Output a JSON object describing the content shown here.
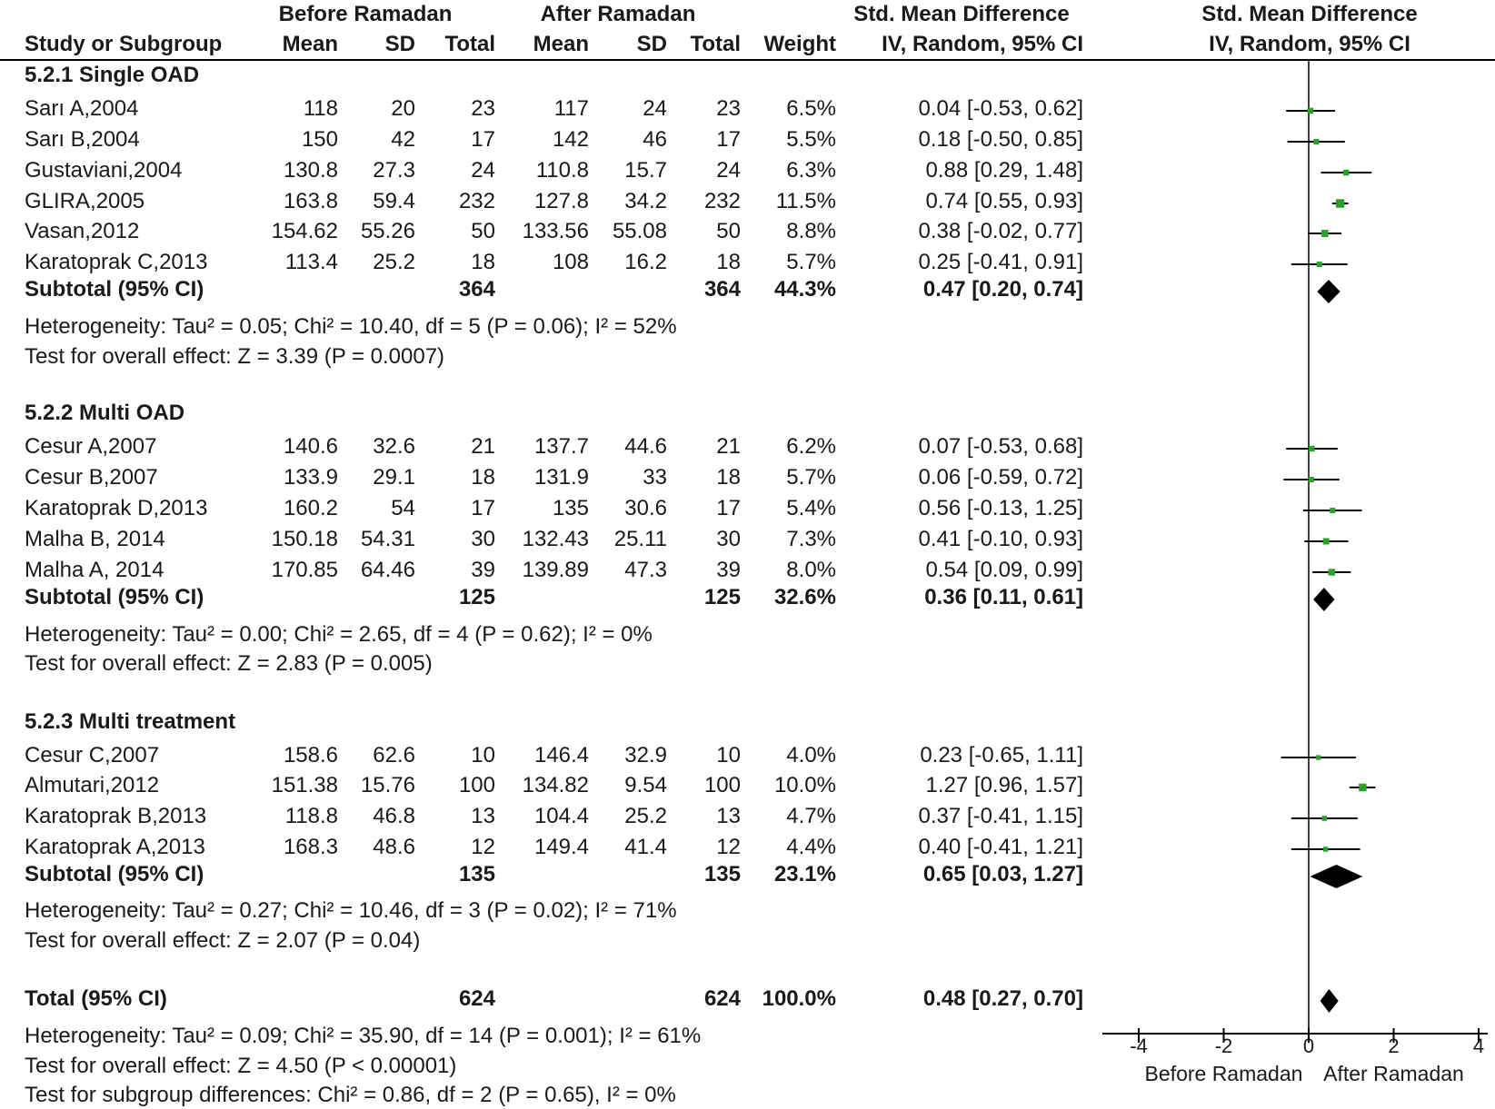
{
  "headers": {
    "group_before": "Before Ramadan",
    "group_after": "After Ramadan",
    "effect_col": "Std. Mean Difference",
    "study_col": "Study or Subgroup",
    "mean": "Mean",
    "sd": "SD",
    "total": "Total",
    "weight": "Weight",
    "method": "IV, Random, 95% CI",
    "plot_title": "Std. Mean Difference",
    "plot_method": "IV, Random, 95% CI"
  },
  "groups": [
    {
      "title": "5.2.1 Single OAD",
      "studies": [
        {
          "name": "Sarı A,2004",
          "m1": "118",
          "sd1": "20",
          "n1": "23",
          "m2": "117",
          "sd2": "24",
          "n2": "23",
          "weight": "6.5%",
          "ci": "0.04 [-0.53, 0.62]"
        },
        {
          "name": "Sarı B,2004",
          "m1": "150",
          "sd1": "42",
          "n1": "17",
          "m2": "142",
          "sd2": "46",
          "n2": "17",
          "weight": "5.5%",
          "ci": "0.18 [-0.50, 0.85]"
        },
        {
          "name": "Gustaviani,2004",
          "m1": "130.8",
          "sd1": "27.3",
          "n1": "24",
          "m2": "110.8",
          "sd2": "15.7",
          "n2": "24",
          "weight": "6.3%",
          "ci": "0.88 [0.29, 1.48]"
        },
        {
          "name": "GLIRA,2005",
          "m1": "163.8",
          "sd1": "59.4",
          "n1": "232",
          "m2": "127.8",
          "sd2": "34.2",
          "n2": "232",
          "weight": "11.5%",
          "ci": "0.74 [0.55, 0.93]"
        },
        {
          "name": "Vasan,2012",
          "m1": "154.62",
          "sd1": "55.26",
          "n1": "50",
          "m2": "133.56",
          "sd2": "55.08",
          "n2": "50",
          "weight": "8.8%",
          "ci": "0.38 [-0.02, 0.77]"
        },
        {
          "name": "Karatoprak C,2013",
          "m1": "113.4",
          "sd1": "25.2",
          "n1": "18",
          "m2": "108",
          "sd2": "16.2",
          "n2": "18",
          "weight": "5.7%",
          "ci": "0.25 [-0.41, 0.91]"
        }
      ],
      "subtotal": {
        "label": "Subtotal (95% CI)",
        "n1": "364",
        "n2": "364",
        "weight": "44.3%",
        "ci": "0.47 [0.20, 0.74]"
      },
      "heterogeneity": "Heterogeneity: Tau² = 0.05; Chi² = 10.40, df = 5 (P = 0.06); I² = 52%",
      "overall": "Test for overall effect: Z = 3.39 (P = 0.0007)"
    },
    {
      "title": "5.2.2 Multi OAD",
      "studies": [
        {
          "name": "Cesur A,2007",
          "m1": "140.6",
          "sd1": "32.6",
          "n1": "21",
          "m2": "137.7",
          "sd2": "44.6",
          "n2": "21",
          "weight": "6.2%",
          "ci": "0.07 [-0.53, 0.68]"
        },
        {
          "name": "Cesur B,2007",
          "m1": "133.9",
          "sd1": "29.1",
          "n1": "18",
          "m2": "131.9",
          "sd2": "33",
          "n2": "18",
          "weight": "5.7%",
          "ci": "0.06 [-0.59, 0.72]"
        },
        {
          "name": "Karatoprak D,2013",
          "m1": "160.2",
          "sd1": "54",
          "n1": "17",
          "m2": "135",
          "sd2": "30.6",
          "n2": "17",
          "weight": "5.4%",
          "ci": "0.56 [-0.13, 1.25]"
        },
        {
          "name": "Malha B, 2014",
          "m1": "150.18",
          "sd1": "54.31",
          "n1": "30",
          "m2": "132.43",
          "sd2": "25.11",
          "n2": "30",
          "weight": "7.3%",
          "ci": "0.41 [-0.10, 0.93]"
        },
        {
          "name": "Malha A, 2014",
          "m1": "170.85",
          "sd1": "64.46",
          "n1": "39",
          "m2": "139.89",
          "sd2": "47.3",
          "n2": "39",
          "weight": "8.0%",
          "ci": "0.54 [0.09, 0.99]"
        }
      ],
      "subtotal": {
        "label": "Subtotal (95% CI)",
        "n1": "125",
        "n2": "125",
        "weight": "32.6%",
        "ci": "0.36 [0.11, 0.61]"
      },
      "heterogeneity": "Heterogeneity: Tau² = 0.00; Chi² = 2.65, df = 4 (P = 0.62); I² = 0%",
      "overall": "Test for overall effect: Z = 2.83 (P = 0.005)"
    },
    {
      "title": "5.2.3 Multi treatment",
      "studies": [
        {
          "name": "Cesur C,2007",
          "m1": "158.6",
          "sd1": "62.6",
          "n1": "10",
          "m2": "146.4",
          "sd2": "32.9",
          "n2": "10",
          "weight": "4.0%",
          "ci": "0.23 [-0.65, 1.11]"
        },
        {
          "name": "Almutari,2012",
          "m1": "151.38",
          "sd1": "15.76",
          "n1": "100",
          "m2": "134.82",
          "sd2": "9.54",
          "n2": "100",
          "weight": "10.0%",
          "ci": "1.27 [0.96, 1.57]"
        },
        {
          "name": "Karatoprak B,2013",
          "m1": "118.8",
          "sd1": "46.8",
          "n1": "13",
          "m2": "104.4",
          "sd2": "25.2",
          "n2": "13",
          "weight": "4.7%",
          "ci": "0.37 [-0.41, 1.15]"
        },
        {
          "name": "Karatoprak A,2013",
          "m1": "168.3",
          "sd1": "48.6",
          "n1": "12",
          "m2": "149.4",
          "sd2": "41.4",
          "n2": "12",
          "weight": "4.4%",
          "ci": "0.40 [-0.41, 1.21]"
        }
      ],
      "subtotal": {
        "label": "Subtotal (95% CI)",
        "n1": "135",
        "n2": "135",
        "weight": "23.1%",
        "ci": "0.65 [0.03, 1.27]"
      },
      "heterogeneity": "Heterogeneity: Tau² = 0.27; Chi² = 10.46, df = 3 (P = 0.02); I² = 71%",
      "overall": "Test for overall effect: Z = 2.07 (P = 0.04)"
    }
  ],
  "total": {
    "label": "Total (95% CI)",
    "n1": "624",
    "n2": "624",
    "weight": "100.0%",
    "ci": "0.48 [0.27, 0.70]",
    "heterogeneity": "Heterogeneity: Tau² = 0.09; Chi² = 35.90, df = 14 (P = 0.001); I² = 61%",
    "overall": "Test for overall effect: Z = 4.50 (P < 0.00001)",
    "subgroup": "Test for subgroup differences: Chi² = 0.86, df = 2 (P = 0.65), I² = 0%"
  },
  "colors": {
    "point": "#2ca02c",
    "diamond": "#000000",
    "line": "#000000"
  },
  "chart_data": {
    "type": "forest",
    "xlim": [
      -4,
      4
    ],
    "xticks": [
      "-4",
      "-2",
      "0",
      "2",
      "4"
    ],
    "xlabel_left": "Before Ramadan",
    "xlabel_right": "After Ramadan",
    "studies": [
      {
        "name": "Sarı A,2004",
        "est": 0.04,
        "lo": -0.53,
        "hi": 0.62,
        "weight": 6.5
      },
      {
        "name": "Sarı B,2004",
        "est": 0.18,
        "lo": -0.5,
        "hi": 0.85,
        "weight": 5.5
      },
      {
        "name": "Gustaviani,2004",
        "est": 0.88,
        "lo": 0.29,
        "hi": 1.48,
        "weight": 6.3
      },
      {
        "name": "GLIRA,2005",
        "est": 0.74,
        "lo": 0.55,
        "hi": 0.93,
        "weight": 11.5
      },
      {
        "name": "Vasan,2012",
        "est": 0.38,
        "lo": -0.02,
        "hi": 0.77,
        "weight": 8.8
      },
      {
        "name": "Karatoprak C,2013",
        "est": 0.25,
        "lo": -0.41,
        "hi": 0.91,
        "weight": 5.7
      },
      {
        "name": "Cesur A,2007",
        "est": 0.07,
        "lo": -0.53,
        "hi": 0.68,
        "weight": 6.2
      },
      {
        "name": "Cesur B,2007",
        "est": 0.06,
        "lo": -0.59,
        "hi": 0.72,
        "weight": 5.7
      },
      {
        "name": "Karatoprak D,2013",
        "est": 0.56,
        "lo": -0.13,
        "hi": 1.25,
        "weight": 5.4
      },
      {
        "name": "Malha B, 2014",
        "est": 0.41,
        "lo": -0.1,
        "hi": 0.93,
        "weight": 7.3
      },
      {
        "name": "Malha A, 2014",
        "est": 0.54,
        "lo": 0.09,
        "hi": 0.99,
        "weight": 8.0
      },
      {
        "name": "Cesur C,2007",
        "est": 0.23,
        "lo": -0.65,
        "hi": 1.11,
        "weight": 4.0
      },
      {
        "name": "Almutari,2012",
        "est": 1.27,
        "lo": 0.96,
        "hi": 1.57,
        "weight": 10.0
      },
      {
        "name": "Karatoprak B,2013",
        "est": 0.37,
        "lo": -0.41,
        "hi": 1.15,
        "weight": 4.7
      },
      {
        "name": "Karatoprak A,2013",
        "est": 0.4,
        "lo": -0.41,
        "hi": 1.21,
        "weight": 4.4
      }
    ],
    "subtotals": [
      {
        "name": "5.2.1 Single OAD",
        "est": 0.47,
        "lo": 0.2,
        "hi": 0.74
      },
      {
        "name": "5.2.2 Multi OAD",
        "est": 0.36,
        "lo": 0.11,
        "hi": 0.61
      },
      {
        "name": "5.2.3 Multi treatment",
        "est": 0.65,
        "lo": 0.03,
        "hi": 1.27
      }
    ],
    "overall": {
      "est": 0.48,
      "lo": 0.27,
      "hi": 0.7
    }
  }
}
